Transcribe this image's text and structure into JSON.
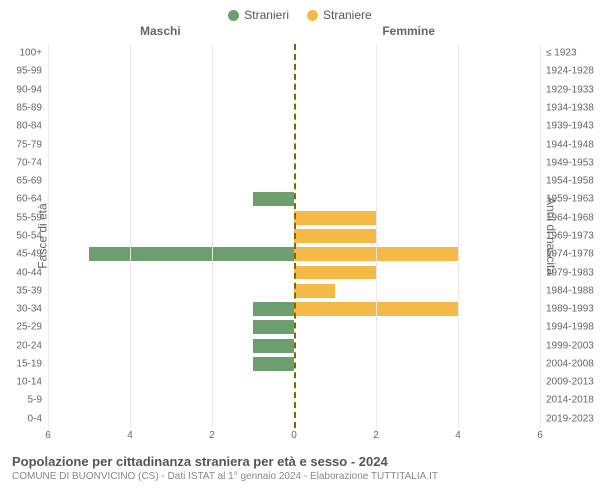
{
  "legend": {
    "male": {
      "label": "Stranieri",
      "color": "#6d9e6d"
    },
    "female": {
      "label": "Straniere",
      "color": "#f5b947"
    }
  },
  "colTitles": {
    "male": "Maschi",
    "female": "Femmine"
  },
  "axis": {
    "leftTitle": "Fasce di età",
    "rightTitle": "Anni di nascita",
    "xmax": 6,
    "ticks": [
      0,
      2,
      4,
      6
    ],
    "grid_color": "#e8e8e8",
    "center_line_color": "#7a6a00"
  },
  "rows": [
    {
      "age": "100+",
      "birth": "≤ 1923",
      "m": 0,
      "f": 0
    },
    {
      "age": "95-99",
      "birth": "1924-1928",
      "m": 0,
      "f": 0
    },
    {
      "age": "90-94",
      "birth": "1929-1933",
      "m": 0,
      "f": 0
    },
    {
      "age": "85-89",
      "birth": "1934-1938",
      "m": 0,
      "f": 0
    },
    {
      "age": "80-84",
      "birth": "1939-1943",
      "m": 0,
      "f": 0
    },
    {
      "age": "75-79",
      "birth": "1944-1948",
      "m": 0,
      "f": 0
    },
    {
      "age": "70-74",
      "birth": "1949-1953",
      "m": 0,
      "f": 0
    },
    {
      "age": "65-69",
      "birth": "1954-1958",
      "m": 0,
      "f": 0
    },
    {
      "age": "60-64",
      "birth": "1959-1963",
      "m": 1,
      "f": 0
    },
    {
      "age": "55-59",
      "birth": "1964-1968",
      "m": 0,
      "f": 2
    },
    {
      "age": "50-54",
      "birth": "1969-1973",
      "m": 0,
      "f": 2
    },
    {
      "age": "45-49",
      "birth": "1974-1978",
      "m": 5,
      "f": 4
    },
    {
      "age": "40-44",
      "birth": "1979-1983",
      "m": 0,
      "f": 2
    },
    {
      "age": "35-39",
      "birth": "1984-1988",
      "m": 0,
      "f": 1
    },
    {
      "age": "30-34",
      "birth": "1989-1993",
      "m": 1,
      "f": 4
    },
    {
      "age": "25-29",
      "birth": "1994-1998",
      "m": 1,
      "f": 0
    },
    {
      "age": "20-24",
      "birth": "1999-2003",
      "m": 1,
      "f": 0
    },
    {
      "age": "15-19",
      "birth": "2004-2008",
      "m": 1,
      "f": 0
    },
    {
      "age": "10-14",
      "birth": "2009-2013",
      "m": 0,
      "f": 0
    },
    {
      "age": "5-9",
      "birth": "2014-2018",
      "m": 0,
      "f": 0
    },
    {
      "age": "0-4",
      "birth": "2019-2023",
      "m": 0,
      "f": 0
    }
  ],
  "footer": {
    "title": "Popolazione per cittadinanza straniera per età e sesso - 2024",
    "sub": "COMUNE DI BUONVICINO (CS) - Dati ISTAT al 1° gennaio 2024 - Elaborazione TUTTITALIA.IT"
  },
  "style": {
    "background": "#ffffff",
    "row_label_fontsize": 10,
    "tick_fontsize": 10,
    "legend_fontsize": 12,
    "title_fontsize": 13,
    "sub_fontsize": 10
  }
}
